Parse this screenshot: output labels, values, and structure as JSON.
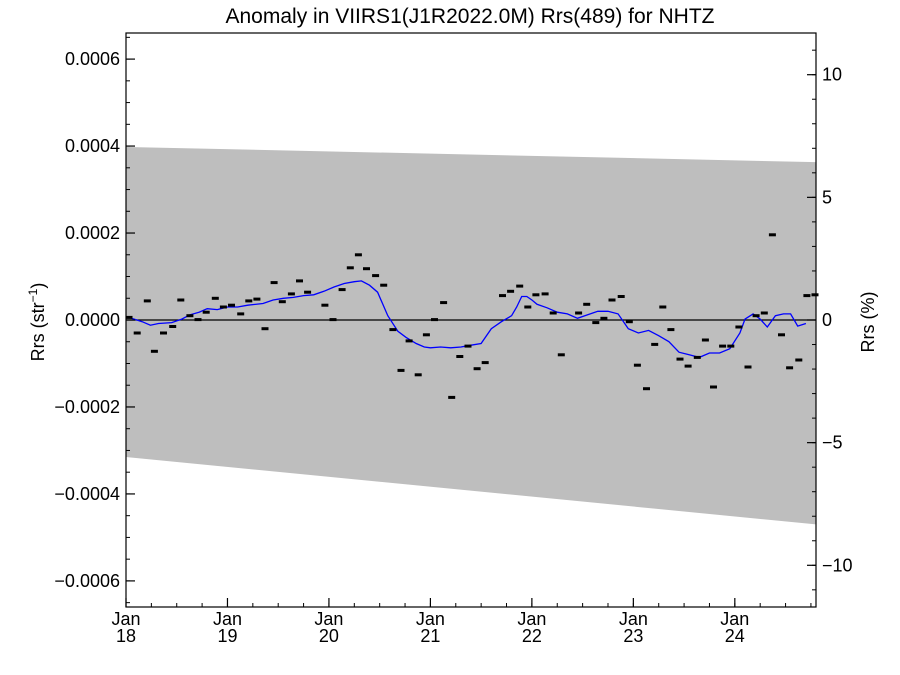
{
  "chart_data": {
    "type": "scatter",
    "title": "Anomaly in VIIRS1(J1R2022.0M) Rrs(489) for NHTZ",
    "ylabel_left": {
      "base": "Rrs (str",
      "sup": "−1",
      "close": ")"
    },
    "ylabel_right": "Rrs (%)",
    "xlim": [
      2018.0,
      2024.8
    ],
    "ylim": [
      -0.00066,
      0.00066
    ],
    "ylim_right": [
      -11.7,
      11.7
    ],
    "grid": false,
    "yticks_left": [
      {
        "value": 0.0006,
        "label": "0.0006"
      },
      {
        "value": 0.0004,
        "label": "0.0004"
      },
      {
        "value": 0.0002,
        "label": "0.0002"
      },
      {
        "value": 0.0,
        "label": "0.0000"
      },
      {
        "value": -0.0002,
        "label": "−0.0002"
      },
      {
        "value": -0.0004,
        "label": "−0.0004"
      },
      {
        "value": -0.0006,
        "label": "−0.0006"
      }
    ],
    "yticks_right": [
      {
        "value": 10,
        "label": "10"
      },
      {
        "value": 5,
        "label": "5"
      },
      {
        "value": 0,
        "label": "0"
      },
      {
        "value": -5,
        "label": "−5"
      },
      {
        "value": -10,
        "label": "−10"
      }
    ],
    "xticks": [
      {
        "value": 2018,
        "month": "Jan",
        "year": "18"
      },
      {
        "value": 2019,
        "month": "Jan",
        "year": "19"
      },
      {
        "value": 2020,
        "month": "Jan",
        "year": "20"
      },
      {
        "value": 2021,
        "month": "Jan",
        "year": "21"
      },
      {
        "value": 2022,
        "month": "Jan",
        "year": "22"
      },
      {
        "value": 2023,
        "month": "Jan",
        "year": "23"
      },
      {
        "value": 2024,
        "month": "Jan",
        "year": "24"
      }
    ],
    "uncertainty_band": {
      "color": "#bebebe",
      "upper": [
        [
          2018.0,
          0.000398
        ],
        [
          2024.8,
          0.000363
        ]
      ],
      "lower": [
        [
          2018.0,
          -0.000315
        ],
        [
          2024.8,
          -0.00047
        ]
      ]
    },
    "zero_line": 0.0,
    "points": {
      "color": "#000000",
      "data": [
        [
          2018.03,
          6e-06
        ],
        [
          2018.11,
          -3e-05
        ],
        [
          2018.21,
          4.4e-05
        ],
        [
          2018.28,
          -7.2e-05
        ],
        [
          2018.37,
          -3e-05
        ],
        [
          2018.46,
          -1.5e-05
        ],
        [
          2018.54,
          4.6e-05
        ],
        [
          2018.63,
          1e-05
        ],
        [
          2018.71,
          1e-06
        ],
        [
          2018.79,
          1.8e-05
        ],
        [
          2018.88,
          5e-05
        ],
        [
          2018.96,
          3e-05
        ],
        [
          2019.04,
          3.4e-05
        ],
        [
          2019.13,
          1.4e-05
        ],
        [
          2019.21,
          4.4e-05
        ],
        [
          2019.29,
          4.8e-05
        ],
        [
          2019.37,
          -2e-05
        ],
        [
          2019.46,
          8.6e-05
        ],
        [
          2019.54,
          4.2e-05
        ],
        [
          2019.63,
          6e-05
        ],
        [
          2019.71,
          9e-05
        ],
        [
          2019.79,
          6.4e-05
        ],
        [
          2019.96,
          3.4e-05
        ],
        [
          2020.04,
          1e-06
        ],
        [
          2020.13,
          7e-05
        ],
        [
          2020.21,
          0.00012
        ],
        [
          2020.29,
          0.00015
        ],
        [
          2020.37,
          0.000118
        ],
        [
          2020.46,
          0.000102
        ],
        [
          2020.54,
          8e-05
        ],
        [
          2020.63,
          -2.2e-05
        ],
        [
          2020.71,
          -0.000116
        ],
        [
          2020.79,
          -4.8e-05
        ],
        [
          2020.88,
          -0.000126
        ],
        [
          2020.96,
          -3.4e-05
        ],
        [
          2021.04,
          1e-06
        ],
        [
          2021.13,
          4e-05
        ],
        [
          2021.21,
          -0.000178
        ],
        [
          2021.29,
          -8.4e-05
        ],
        [
          2021.37,
          -6e-05
        ],
        [
          2021.46,
          -0.000112
        ],
        [
          2021.54,
          -9.8e-05
        ],
        [
          2021.71,
          5.6e-05
        ],
        [
          2021.79,
          6.6e-05
        ],
        [
          2021.88,
          7.8e-05
        ],
        [
          2021.96,
          3e-05
        ],
        [
          2022.04,
          5.8e-05
        ],
        [
          2022.13,
          6e-05
        ],
        [
          2022.21,
          1.6e-05
        ],
        [
          2022.29,
          -8e-05
        ],
        [
          2022.46,
          1.6e-05
        ],
        [
          2022.54,
          3.6e-05
        ],
        [
          2022.63,
          -6e-06
        ],
        [
          2022.71,
          4e-06
        ],
        [
          2022.79,
          4.6e-05
        ],
        [
          2022.88,
          5.4e-05
        ],
        [
          2022.96,
          -4e-06
        ],
        [
          2023.04,
          -0.000104
        ],
        [
          2023.13,
          -0.000158
        ],
        [
          2023.21,
          -5.6e-05
        ],
        [
          2023.29,
          3e-05
        ],
        [
          2023.37,
          -2.2e-05
        ],
        [
          2023.46,
          -9e-05
        ],
        [
          2023.54,
          -0.000106
        ],
        [
          2023.63,
          -8.6e-05
        ],
        [
          2023.71,
          -4.6e-05
        ],
        [
          2023.79,
          -0.000154
        ],
        [
          2023.88,
          -6e-05
        ],
        [
          2023.96,
          -6e-05
        ],
        [
          2024.04,
          -1.6e-05
        ],
        [
          2024.13,
          -0.000108
        ],
        [
          2024.21,
          1e-05
        ],
        [
          2024.29,
          1.6e-05
        ],
        [
          2024.37,
          0.000196
        ],
        [
          2024.46,
          -3.4e-05
        ],
        [
          2024.54,
          -0.00011
        ],
        [
          2024.63,
          -9.2e-05
        ],
        [
          2024.71,
          5.6e-05
        ],
        [
          2024.79,
          5.8e-05
        ]
      ]
    },
    "smoothed_line": {
      "color": "#0000ff",
      "data": [
        [
          2018.0,
          8e-06
        ],
        [
          2018.08,
          2e-06
        ],
        [
          2018.16,
          -4e-06
        ],
        [
          2018.24,
          -1.2e-05
        ],
        [
          2018.32,
          -8e-06
        ],
        [
          2018.45,
          -6e-06
        ],
        [
          2018.55,
          2e-06
        ],
        [
          2018.63,
          1.2e-05
        ],
        [
          2018.72,
          1.8e-05
        ],
        [
          2018.8,
          2.6e-05
        ],
        [
          2018.9,
          2.4e-05
        ],
        [
          2019.0,
          3e-05
        ],
        [
          2019.1,
          3e-05
        ],
        [
          2019.2,
          3.4e-05
        ],
        [
          2019.35,
          3.8e-05
        ],
        [
          2019.45,
          4.6e-05
        ],
        [
          2019.55,
          5e-05
        ],
        [
          2019.65,
          5.2e-05
        ],
        [
          2019.75,
          5.6e-05
        ],
        [
          2019.85,
          5.8e-05
        ],
        [
          2019.95,
          6.6e-05
        ],
        [
          2020.05,
          7.6e-05
        ],
        [
          2020.15,
          8.4e-05
        ],
        [
          2020.25,
          8.8e-05
        ],
        [
          2020.32,
          9e-05
        ],
        [
          2020.4,
          8e-05
        ],
        [
          2020.48,
          6.4e-05
        ],
        [
          2020.58,
          1e-05
        ],
        [
          2020.68,
          -2.6e-05
        ],
        [
          2020.76,
          -4e-05
        ],
        [
          2020.86,
          -5.4e-05
        ],
        [
          2020.94,
          -6.2e-05
        ],
        [
          2021.0,
          -6.4e-05
        ],
        [
          2021.1,
          -6.2e-05
        ],
        [
          2021.2,
          -6.4e-05
        ],
        [
          2021.3,
          -6.2e-05
        ],
        [
          2021.4,
          -5.8e-05
        ],
        [
          2021.5,
          -5.4e-05
        ],
        [
          2021.6,
          -2e-05
        ],
        [
          2021.7,
          -4e-06
        ],
        [
          2021.8,
          1e-05
        ],
        [
          2021.85,
          3e-05
        ],
        [
          2021.9,
          5.4e-05
        ],
        [
          2021.95,
          5.4e-05
        ],
        [
          2022.0,
          4.6e-05
        ],
        [
          2022.05,
          3.6e-05
        ],
        [
          2022.15,
          2.8e-05
        ],
        [
          2022.25,
          1.8e-05
        ],
        [
          2022.35,
          1.4e-05
        ],
        [
          2022.45,
          4e-06
        ],
        [
          2022.55,
          1.2e-05
        ],
        [
          2022.65,
          2e-05
        ],
        [
          2022.75,
          2e-05
        ],
        [
          2022.85,
          1.4e-05
        ],
        [
          2022.95,
          -2e-05
        ],
        [
          2023.05,
          -3e-05
        ],
        [
          2023.15,
          -2.4e-05
        ],
        [
          2023.25,
          -3.6e-05
        ],
        [
          2023.35,
          -5e-05
        ],
        [
          2023.45,
          -7.4e-05
        ],
        [
          2023.55,
          -8e-05
        ],
        [
          2023.65,
          -8.6e-05
        ],
        [
          2023.75,
          -7.6e-05
        ],
        [
          2023.85,
          -7.6e-05
        ],
        [
          2023.95,
          -6.6e-05
        ],
        [
          2024.05,
          -3e-05
        ],
        [
          2024.1,
          2e-06
        ],
        [
          2024.18,
          1.4e-05
        ],
        [
          2024.25,
          2e-06
        ],
        [
          2024.32,
          -1.6e-05
        ],
        [
          2024.4,
          1e-05
        ],
        [
          2024.48,
          1.4e-05
        ],
        [
          2024.55,
          1.4e-05
        ],
        [
          2024.62,
          -1.4e-05
        ],
        [
          2024.7,
          -8e-06
        ]
      ]
    }
  }
}
